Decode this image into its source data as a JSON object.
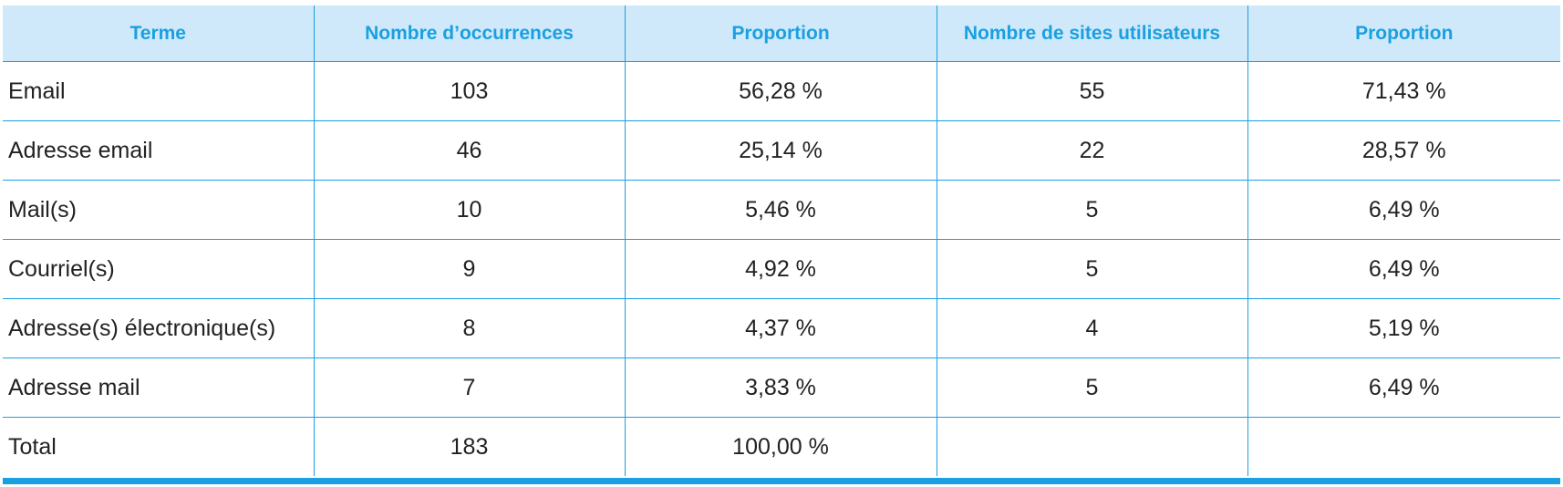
{
  "table": {
    "headers": [
      "Terme",
      "Nombre d’occurrences",
      "Proportion",
      "Nombre de sites utilisateurs",
      "Proportion"
    ],
    "rows": [
      [
        "Email",
        "103",
        "56,28 %",
        "55",
        "71,43 %"
      ],
      [
        "Adresse email",
        "46",
        "25,14 %",
        "22",
        "28,57 %"
      ],
      [
        "Mail(s)",
        "10",
        "5,46 %",
        "5",
        "6,49 %"
      ],
      [
        "Courriel(s)",
        "9",
        "4,92 %",
        "5",
        "6,49 %"
      ],
      [
        "Adresse(s) électronique(s)",
        "8",
        "4,37 %",
        "4",
        "5,19 %"
      ],
      [
        "Adresse mail",
        "7",
        "3,83 %",
        "5",
        "6,49 %"
      ],
      [
        "Total",
        "183",
        "100,00 %",
        "",
        ""
      ]
    ]
  },
  "colors": {
    "header_background": "#cfe9fb",
    "accent": "#1aa0e0",
    "text": "#222222"
  }
}
